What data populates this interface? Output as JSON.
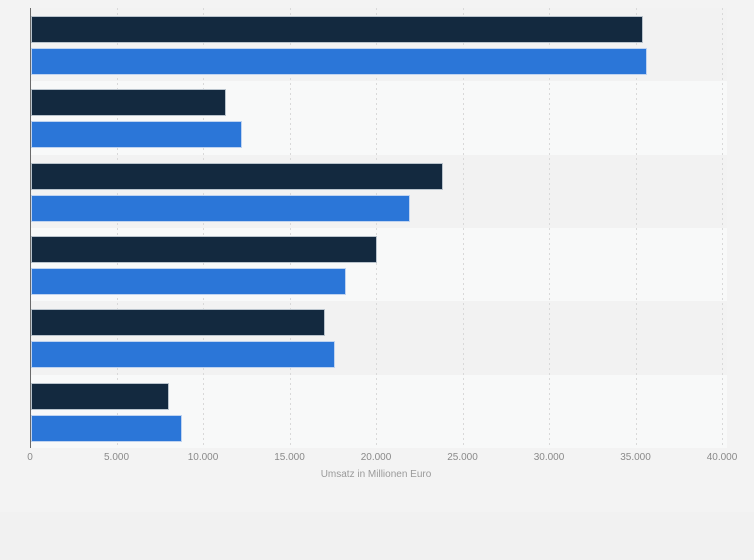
{
  "page": {
    "background": "#f1f1f1",
    "chart_region_background": "#f3f3f3",
    "band_dark": "#f2f2f2",
    "band_light": "#f8f9f9",
    "gridline_color": "#d9d9d9",
    "axis_line_color": "#6a6a6a",
    "tick_text_color": "#8a8a8a",
    "axis_title_color": "#9a9a9a"
  },
  "chart_data": {
    "type": "bar",
    "orientation": "horizontal",
    "title": "",
    "xlabel": "Umsatz in Millionen Euro",
    "ylabel": "",
    "xlim": [
      0,
      40000
    ],
    "xticks": [
      0,
      5000,
      10000,
      15000,
      20000,
      25000,
      30000,
      35000,
      40000
    ],
    "xtick_labels": [
      "0",
      "5.000",
      "10.000",
      "15.000",
      "20.000",
      "25.000",
      "30.000",
      "35.000",
      "40.000"
    ],
    "grid": "vertical-dashed",
    "legend": "none",
    "category_labels_visible": false,
    "categories": [
      "",
      "",
      "",
      "",
      "",
      ""
    ],
    "series": [
      {
        "id": "series-1",
        "color": "#13293f",
        "border_color": "#b9c3cc",
        "values": [
          35400,
          11300,
          23800,
          20000,
          17000,
          8000
        ]
      },
      {
        "id": "series-2",
        "color": "#2b76d8",
        "border_color": "#bfd3f0",
        "values": [
          35600,
          12200,
          21900,
          18200,
          17600,
          8700
        ]
      }
    ]
  }
}
